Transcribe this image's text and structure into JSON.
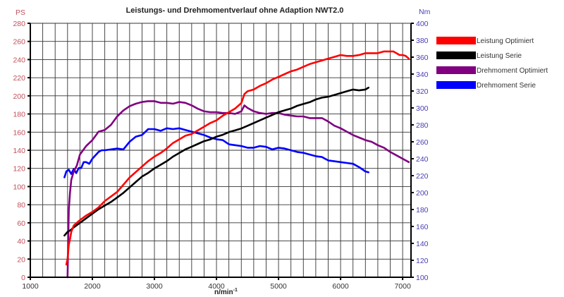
{
  "chart_data": {
    "type": "line",
    "title": "Leistungs- und Drehmomentverlauf ohne Adaption NWT2.0",
    "xlabel": "n/min",
    "xlabel_superscript": "-1",
    "ylabel_left": "PS",
    "ylabel_right": "Nm",
    "xlim": [
      1000,
      7135
    ],
    "ylim_left": [
      0,
      280
    ],
    "ylim_right": [
      100,
      400
    ],
    "x_ticks": [
      1000,
      2000,
      3000,
      4000,
      5000,
      6000,
      7000
    ],
    "x_grid_step": 200,
    "y_ticks_left": [
      0,
      20,
      40,
      60,
      80,
      100,
      120,
      140,
      160,
      180,
      200,
      220,
      240,
      260,
      280
    ],
    "y_ticks_right": [
      100,
      120,
      140,
      160,
      180,
      200,
      220,
      240,
      260,
      280,
      300,
      320,
      340,
      360,
      380,
      400
    ],
    "grid": true,
    "legend_position": "right",
    "colors": {
      "leistung_optimiert": "#ff0000",
      "leistung_serie": "#000000",
      "drehmoment_optimiert": "#800080",
      "drehmoment_serie": "#0000ff"
    },
    "series": [
      {
        "name": "Leistung Optimiert",
        "axis": "left",
        "color": "#ff0000",
        "x": [
          1580,
          1600,
          1620,
          1640,
          1660,
          1700,
          1800,
          1900,
          2000,
          2100,
          2200,
          2300,
          2400,
          2500,
          2600,
          2700,
          2800,
          2900,
          3000,
          3100,
          3200,
          3300,
          3400,
          3500,
          3600,
          3700,
          3800,
          3900,
          4000,
          4100,
          4200,
          4300,
          4400,
          4450,
          4500,
          4600,
          4700,
          4800,
          4900,
          5000,
          5100,
          5200,
          5300,
          5400,
          5500,
          5600,
          5700,
          5800,
          5900,
          6000,
          6100,
          6200,
          6300,
          6400,
          6500,
          6600,
          6700,
          6800,
          6850,
          6900,
          6950,
          7000,
          7050,
          7100
        ],
        "values": [
          14,
          20,
          36,
          42,
          50,
          57,
          63,
          68,
          72,
          77,
          84,
          89,
          94,
          102,
          110,
          116,
          122,
          128,
          133,
          137,
          142,
          148,
          152,
          156,
          158,
          162,
          166,
          170,
          173,
          178,
          182,
          186,
          192,
          202,
          205,
          207,
          211,
          214,
          218,
          221,
          224,
          227,
          229,
          232,
          235,
          237,
          239,
          241,
          243,
          245,
          244,
          244,
          245,
          247,
          247,
          247,
          249,
          249,
          249,
          247,
          245,
          245,
          244,
          241
        ]
      },
      {
        "name": "Leistung Serie",
        "axis": "left",
        "color": "#000000",
        "x": [
          1550,
          1600,
          1650,
          1700,
          1800,
          1900,
          2000,
          2100,
          2200,
          2300,
          2400,
          2500,
          2600,
          2700,
          2800,
          2900,
          3000,
          3100,
          3200,
          3300,
          3400,
          3500,
          3600,
          3700,
          3800,
          3900,
          4000,
          4100,
          4200,
          4300,
          4400,
          4500,
          4600,
          4700,
          4800,
          4900,
          5000,
          5100,
          5200,
          5300,
          5400,
          5500,
          5600,
          5700,
          5800,
          5900,
          6000,
          6100,
          6200,
          6300,
          6400,
          6450
        ],
        "values": [
          46,
          50,
          52,
          55,
          60,
          65,
          70,
          75,
          79,
          83,
          88,
          93,
          99,
          105,
          111,
          115,
          120,
          124,
          128,
          133,
          137,
          141,
          144,
          147,
          150,
          152,
          155,
          157,
          160,
          162,
          164,
          167,
          170,
          173,
          176,
          179,
          182,
          184,
          186,
          189,
          191,
          193,
          196,
          198,
          199,
          201,
          203,
          205,
          207,
          206,
          207,
          209
        ]
      },
      {
        "name": "Drehmoment Optimiert",
        "axis": "right",
        "color": "#800080",
        "x": [
          1600,
          1610,
          1620,
          1640,
          1660,
          1700,
          1750,
          1800,
          1900,
          2000,
          2100,
          2200,
          2300,
          2400,
          2500,
          2600,
          2700,
          2800,
          2900,
          3000,
          3100,
          3200,
          3300,
          3400,
          3500,
          3600,
          3700,
          3800,
          3900,
          4000,
          4100,
          4200,
          4300,
          4400,
          4450,
          4500,
          4600,
          4700,
          4800,
          4900,
          5000,
          5100,
          5200,
          5300,
          5400,
          5500,
          5600,
          5700,
          5800,
          5900,
          6000,
          6100,
          6200,
          6300,
          6400,
          6500,
          6600,
          6700,
          6800,
          6900,
          7000,
          7100
        ],
        "values": [
          100,
          140,
          180,
          200,
          215,
          225,
          232,
          245,
          255,
          262,
          272,
          274,
          280,
          290,
          297,
          302,
          305,
          307,
          308,
          308,
          306,
          306,
          305,
          307,
          306,
          303,
          299,
          296,
          295,
          295,
          294,
          294,
          293,
          296,
          303,
          300,
          296,
          294,
          293,
          294,
          294,
          292,
          291,
          290,
          290,
          288,
          288,
          288,
          284,
          279,
          276,
          272,
          268,
          265,
          262,
          260,
          256,
          253,
          248,
          244,
          240,
          236
        ]
      },
      {
        "name": "Drehmoment Serie",
        "axis": "right",
        "color": "#0000ff",
        "x": [
          1550,
          1580,
          1620,
          1660,
          1700,
          1740,
          1780,
          1820,
          1860,
          1900,
          1950,
          2000,
          2100,
          2150,
          2200,
          2300,
          2400,
          2500,
          2600,
          2700,
          2800,
          2900,
          3000,
          3100,
          3200,
          3300,
          3400,
          3500,
          3600,
          3700,
          3800,
          3900,
          4000,
          4100,
          4200,
          4300,
          4400,
          4500,
          4600,
          4700,
          4800,
          4900,
          5000,
          5100,
          5200,
          5300,
          5400,
          5500,
          5600,
          5700,
          5800,
          5900,
          6000,
          6100,
          6200,
          6300,
          6400,
          6450
        ],
        "values": [
          218,
          225,
          227,
          222,
          228,
          223,
          229,
          229,
          236,
          236,
          234,
          240,
          248,
          250,
          250,
          251,
          252,
          251,
          260,
          266,
          268,
          275,
          275,
          273,
          276,
          275,
          276,
          274,
          272,
          270,
          268,
          265,
          263,
          262,
          257,
          256,
          255,
          253,
          253,
          255,
          254,
          251,
          253,
          252,
          250,
          248,
          247,
          245,
          243,
          242,
          238,
          237,
          236,
          235,
          234,
          230,
          225,
          224
        ]
      }
    ]
  }
}
